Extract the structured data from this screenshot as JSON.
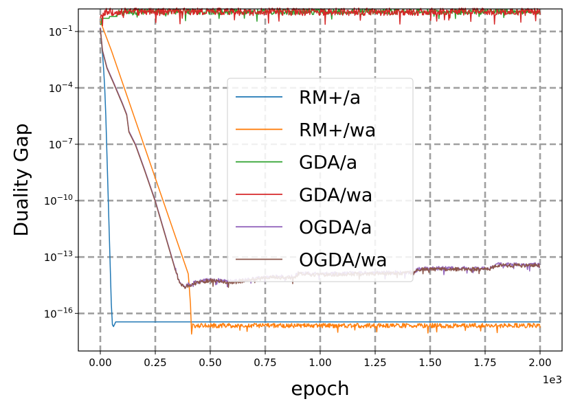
{
  "chart_data": {
    "type": "line",
    "title": "",
    "xlabel": "epoch",
    "ylabel": "Duality Gap",
    "x_offset_text": "1e3",
    "xscale": "linear",
    "yscale": "log",
    "xlim": [
      -0.1,
      2.1
    ],
    "ylim_log10": [
      -18.0,
      0.2
    ],
    "grid": true,
    "legend_position": "center",
    "x_ticks": [
      0.0,
      0.25,
      0.5,
      0.75,
      1.0,
      1.25,
      1.5,
      1.75,
      2.0
    ],
    "x_tick_labels": [
      "0.00",
      "0.25",
      "0.50",
      "0.75",
      "1.00",
      "1.25",
      "1.50",
      "1.75",
      "2.00"
    ],
    "y_ticks_log10": [
      -1,
      -4,
      -7,
      -10,
      -13,
      -16
    ],
    "y_tick_bases": [
      "10",
      "10",
      "10",
      "10",
      "10",
      "10"
    ],
    "y_tick_exponents": [
      "−1",
      "−4",
      "−7",
      "−10",
      "−13",
      "−16"
    ],
    "series": [
      {
        "name": "RM+/a",
        "color": "#1f77b4",
        "x": [
          0.0,
          0.005,
          0.01,
          0.015,
          0.02,
          0.025,
          0.03,
          0.035,
          0.04,
          0.045,
          0.05,
          0.055,
          0.06,
          0.07,
          0.1,
          0.5,
          1.0,
          1.5,
          2.0
        ],
        "log10_y": [
          -0.8,
          -1.5,
          -2.2,
          -3.0,
          -4.0,
          -5.5,
          -7.5,
          -9.5,
          -11.5,
          -13.5,
          -15.5,
          -16.6,
          -16.7,
          -16.45,
          -16.45,
          -16.45,
          -16.45,
          -16.45,
          -16.45
        ],
        "noise": 0,
        "noise_start": 0
      },
      {
        "name": "RM+/wa",
        "color": "#ff7f0e",
        "x": [
          0.0,
          0.05,
          0.1,
          0.15,
          0.2,
          0.25,
          0.3,
          0.35,
          0.4,
          0.41,
          0.415,
          0.42,
          0.43,
          0.5,
          1.0,
          1.5,
          2.0
        ],
        "log10_y": [
          -0.45,
          -2.0,
          -3.7,
          -5.4,
          -7.1,
          -8.8,
          -10.5,
          -12.2,
          -13.9,
          -15.5,
          -17.1,
          -16.55,
          -16.65,
          -16.65,
          -16.65,
          -16.65,
          -16.65
        ],
        "noise": 0.12,
        "noise_start": 0.43
      },
      {
        "name": "GDA/a",
        "color": "#2ca02c",
        "x": [
          0.0,
          0.005,
          0.006,
          0.04,
          0.042,
          0.07,
          0.08,
          0.2,
          0.5,
          1.0,
          1.5,
          2.0
        ],
        "log10_y": [
          -0.65,
          -0.6,
          -0.3,
          -0.3,
          -0.2,
          -0.2,
          0.0,
          0.05,
          0.05,
          0.05,
          0.05,
          0.05
        ],
        "noise": 0.15,
        "noise_start": 0.075
      },
      {
        "name": "GDA/wa",
        "color": "#d62728",
        "x": [
          0.0,
          0.005,
          0.01,
          0.02,
          0.05,
          0.1,
          0.5,
          1.0,
          1.5,
          2.0
        ],
        "log10_y": [
          -0.3,
          0.0,
          -0.15,
          0.05,
          0.05,
          0.05,
          0.05,
          0.05,
          0.05,
          0.05
        ],
        "noise": 0.2,
        "noise_start": 0.005
      },
      {
        "name": "OGDA/a",
        "color": "#9467bd",
        "x": [
          0.0,
          0.01,
          0.03,
          0.06,
          0.1,
          0.12,
          0.13,
          0.16,
          0.2,
          0.25,
          0.3,
          0.34,
          0.36,
          0.38,
          0.4,
          0.45,
          0.5,
          0.6,
          0.7,
          0.75,
          0.8,
          0.88,
          0.9,
          1.0,
          1.2,
          1.43,
          1.45,
          1.6,
          1.77,
          1.8,
          2.0
        ],
        "log10_y": [
          -0.8,
          -2.0,
          -2.9,
          -3.7,
          -4.8,
          -5.4,
          -6.3,
          -7.0,
          -8.3,
          -10.0,
          -12.0,
          -13.6,
          -14.3,
          -14.55,
          -14.45,
          -14.3,
          -14.2,
          -14.3,
          -14.15,
          -14.05,
          -14.05,
          -14.05,
          -13.85,
          -13.9,
          -13.85,
          -13.8,
          -13.6,
          -13.6,
          -13.6,
          -13.4,
          -13.4
        ],
        "noise": 0.1,
        "noise_start": 0.34
      },
      {
        "name": "OGDA/wa",
        "color": "#8c564b",
        "x": [
          0.0,
          0.01,
          0.03,
          0.06,
          0.1,
          0.12,
          0.13,
          0.16,
          0.2,
          0.25,
          0.3,
          0.34,
          0.36,
          0.38,
          0.4,
          0.45,
          0.5,
          0.6,
          0.7,
          0.75,
          0.8,
          0.88,
          0.9,
          1.0,
          1.2,
          1.43,
          1.45,
          1.6,
          1.77,
          1.8,
          2.0
        ],
        "log10_y": [
          -0.85,
          -2.05,
          -2.95,
          -3.75,
          -4.85,
          -5.45,
          -6.35,
          -7.05,
          -8.35,
          -10.05,
          -12.05,
          -13.65,
          -14.35,
          -14.6,
          -14.5,
          -14.35,
          -14.25,
          -14.35,
          -14.2,
          -14.1,
          -14.1,
          -14.1,
          -13.9,
          -13.95,
          -13.9,
          -13.85,
          -13.65,
          -13.65,
          -13.65,
          -13.45,
          -13.45
        ],
        "noise": 0.1,
        "noise_start": 0.34
      }
    ]
  }
}
